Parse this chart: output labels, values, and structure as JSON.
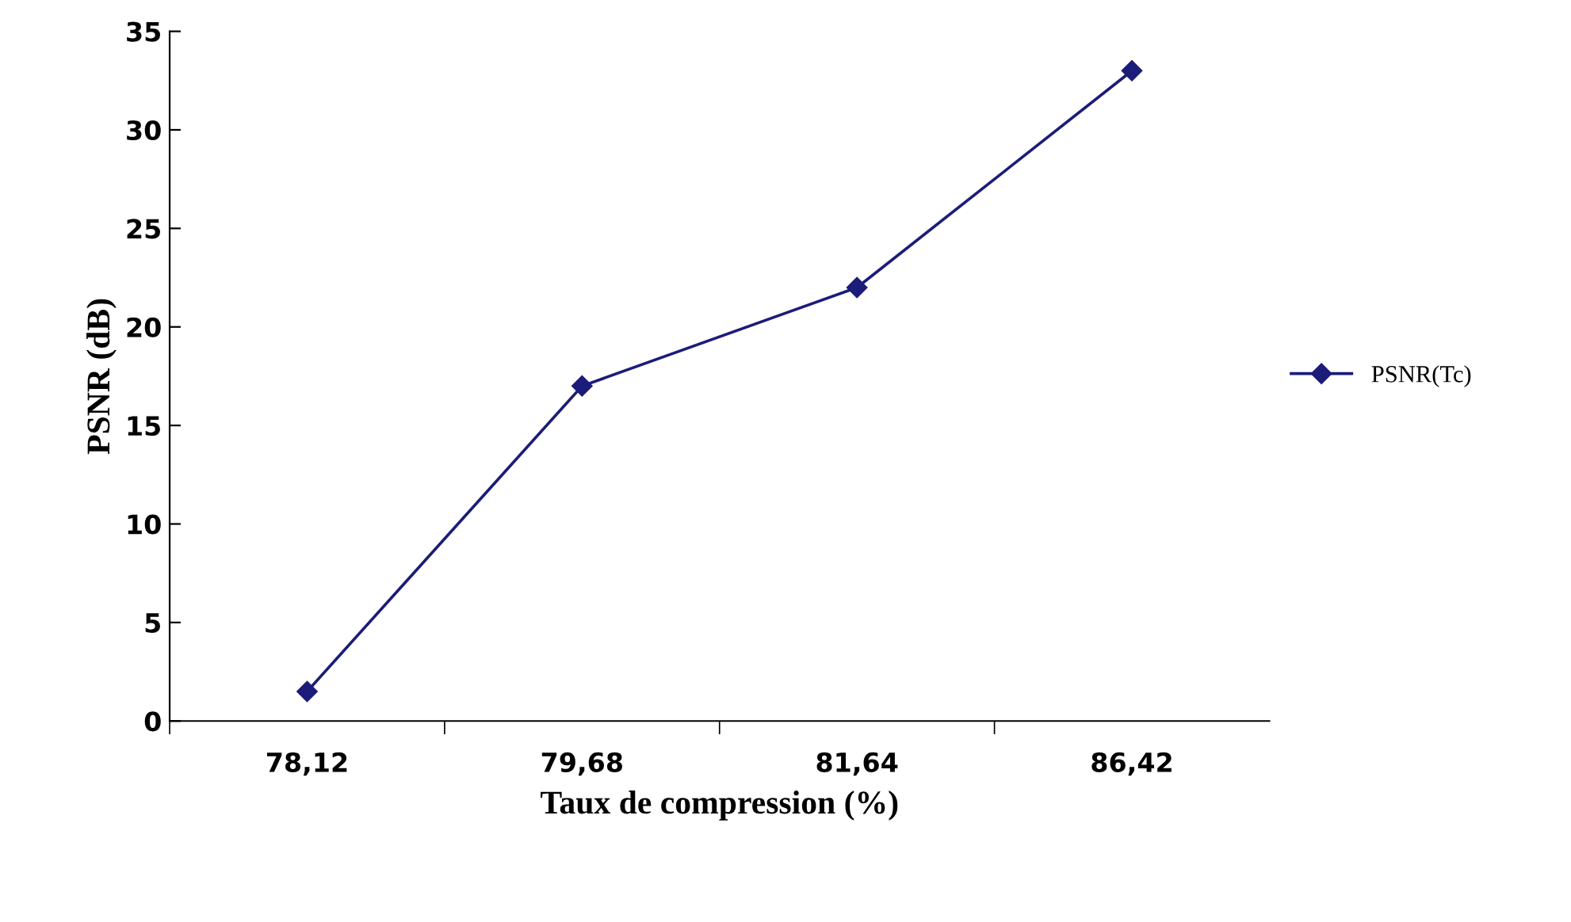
{
  "chart_data": {
    "type": "line",
    "xlabel": "Taux de compression (%)",
    "ylabel": "PSNR (dB)",
    "categories": [
      "78,12",
      "79,68",
      "81,64",
      "86,42"
    ],
    "series": [
      {
        "name": "PSNR(Tc)",
        "color": "#1c1c7a",
        "values": [
          1.5,
          17,
          22,
          33
        ]
      }
    ],
    "ylim": [
      0,
      35
    ],
    "yticks": [
      0,
      5,
      10,
      15,
      20,
      25,
      30,
      35
    ],
    "grid": false,
    "legend": "right",
    "marker": "diamond",
    "line_style": "solid"
  }
}
